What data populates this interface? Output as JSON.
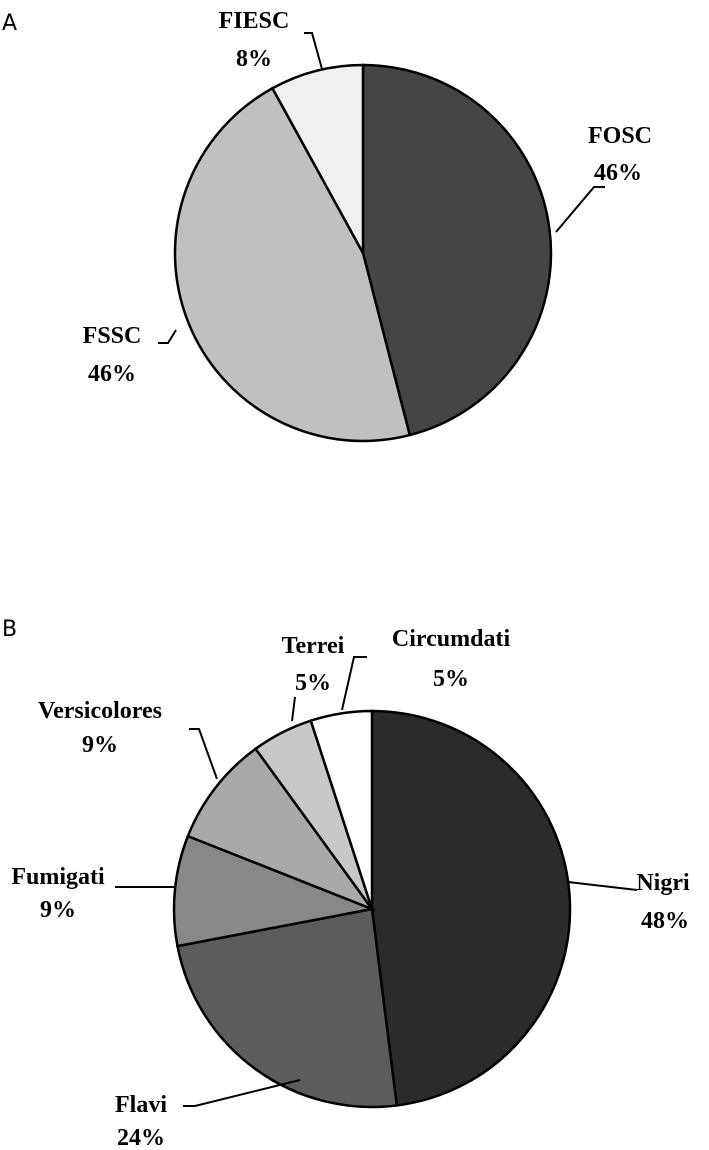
{
  "chart_data": [
    {
      "type": "pie",
      "panel_label": "A",
      "start_angle_deg": 0,
      "direction": "clockwise",
      "slices": [
        {
          "name": "FOSC",
          "value": 46,
          "label": "46%",
          "color": "#454545"
        },
        {
          "name": "FSSC",
          "value": 46,
          "label": "46%",
          "color": "#c0c0c0"
        },
        {
          "name": "FIESC",
          "value": 8,
          "label": "8%",
          "color": "#f0f0f0"
        }
      ]
    },
    {
      "type": "pie",
      "panel_label": "B",
      "start_angle_deg": 0,
      "direction": "clockwise",
      "slices": [
        {
          "name": "Nigri",
          "value": 48,
          "label": "48%",
          "color": "#2b2b2b"
        },
        {
          "name": "Flavi",
          "value": 24,
          "label": "24%",
          "color": "#5c5c5c"
        },
        {
          "name": "Fumigati",
          "value": 9,
          "label": "9%",
          "color": "#888888"
        },
        {
          "name": "Versicolores",
          "value": 9,
          "label": "9%",
          "color": "#a9a9a9"
        },
        {
          "name": "Terrei",
          "value": 5,
          "label": "5%",
          "color": "#c8c8c8"
        },
        {
          "name": "Circumdati",
          "value": 5,
          "label": "5%",
          "color": "#ffffff"
        }
      ]
    }
  ]
}
